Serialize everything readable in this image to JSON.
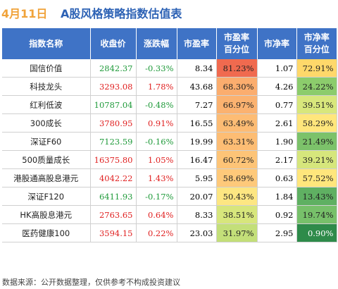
{
  "title": {
    "date": "4月11日",
    "text": "A股风格策略指数估值表"
  },
  "columns": [
    "指数名称",
    "收盘价",
    "涨跌幅",
    "市盈率",
    "市盈率\n百分位",
    "市净率",
    "市净率\n百分位"
  ],
  "rows": [
    {
      "name": "国信价值",
      "close": "2842.37",
      "change": "-0.33%",
      "pe": "8.34",
      "pe_pct": "81.23%",
      "pb": "1.07",
      "pb_pct": "72.91%",
      "pe_color": "#f06a4f",
      "pb_color": "#ffd86a"
    },
    {
      "name": "科技龙头",
      "close": "3293.08",
      "change": "1.78%",
      "pe": "43.68",
      "pe_pct": "68.30%",
      "pb": "4.26",
      "pb_pct": "24.22%",
      "pe_color": "#fbad6e",
      "pb_color": "#8ccc6c"
    },
    {
      "name": "红利低波",
      "close": "10787.04",
      "change": "-0.48%",
      "pe": "7.27",
      "pe_pct": "66.97%",
      "pb": "0.77",
      "pb_pct": "39.51%",
      "pe_color": "#fbb270",
      "pb_color": "#d8e77c"
    },
    {
      "name": "300成长",
      "close": "3780.95",
      "change": "0.91%",
      "pe": "16.55",
      "pe_pct": "63.49%",
      "pb": "2.61",
      "pb_pct": "58.29%",
      "pe_color": "#fdbc74",
      "pb_color": "#ffe67c"
    },
    {
      "name": "深证F60",
      "close": "7123.59",
      "change": "-0.16%",
      "pe": "19.99",
      "pe_pct": "63.31%",
      "pb": "1.90",
      "pb_pct": "21.49%",
      "pe_color": "#fdbd74",
      "pb_color": "#7cc26a"
    },
    {
      "name": "500质量成长",
      "close": "16375.80",
      "change": "1.05%",
      "pe": "16.47",
      "pe_pct": "60.72%",
      "pb": "2.17",
      "pb_pct": "39.21%",
      "pe_color": "#fdc477",
      "pb_color": "#d6e67c"
    },
    {
      "name": "港股通高股息港元",
      "close": "4042.22",
      "change": "1.43%",
      "pe": "5.95",
      "pe_pct": "58.69%",
      "pb": "0.63",
      "pb_pct": "57.52%",
      "pe_color": "#fec97a",
      "pb_color": "#ffe67c"
    },
    {
      "name": "深证F120",
      "close": "6411.93",
      "change": "-0.17%",
      "pe": "20.07",
      "pe_pct": "50.43%",
      "pb": "1.84",
      "pb_pct": "13.43%",
      "pe_color": "#fde682",
      "pb_color": "#5fb062"
    },
    {
      "name": "HK高股息港元",
      "close": "2763.65",
      "change": "0.64%",
      "pe": "8.33",
      "pe_pct": "38.51%",
      "pb": "0.92",
      "pb_pct": "19.74%",
      "pe_color": "#d7e67c",
      "pb_color": "#77c06a"
    },
    {
      "name": "医药健康100",
      "close": "3594.15",
      "change": "0.22%",
      "pe": "23.03",
      "pe_pct": "31.97%",
      "pb": "2.95",
      "pb_pct": "0.90%",
      "pe_color": "#c3df79",
      "pb_color": "#2e8b4a"
    }
  ],
  "footer": "数据来源：公开数据整理，仅供参考不构成投资建议"
}
